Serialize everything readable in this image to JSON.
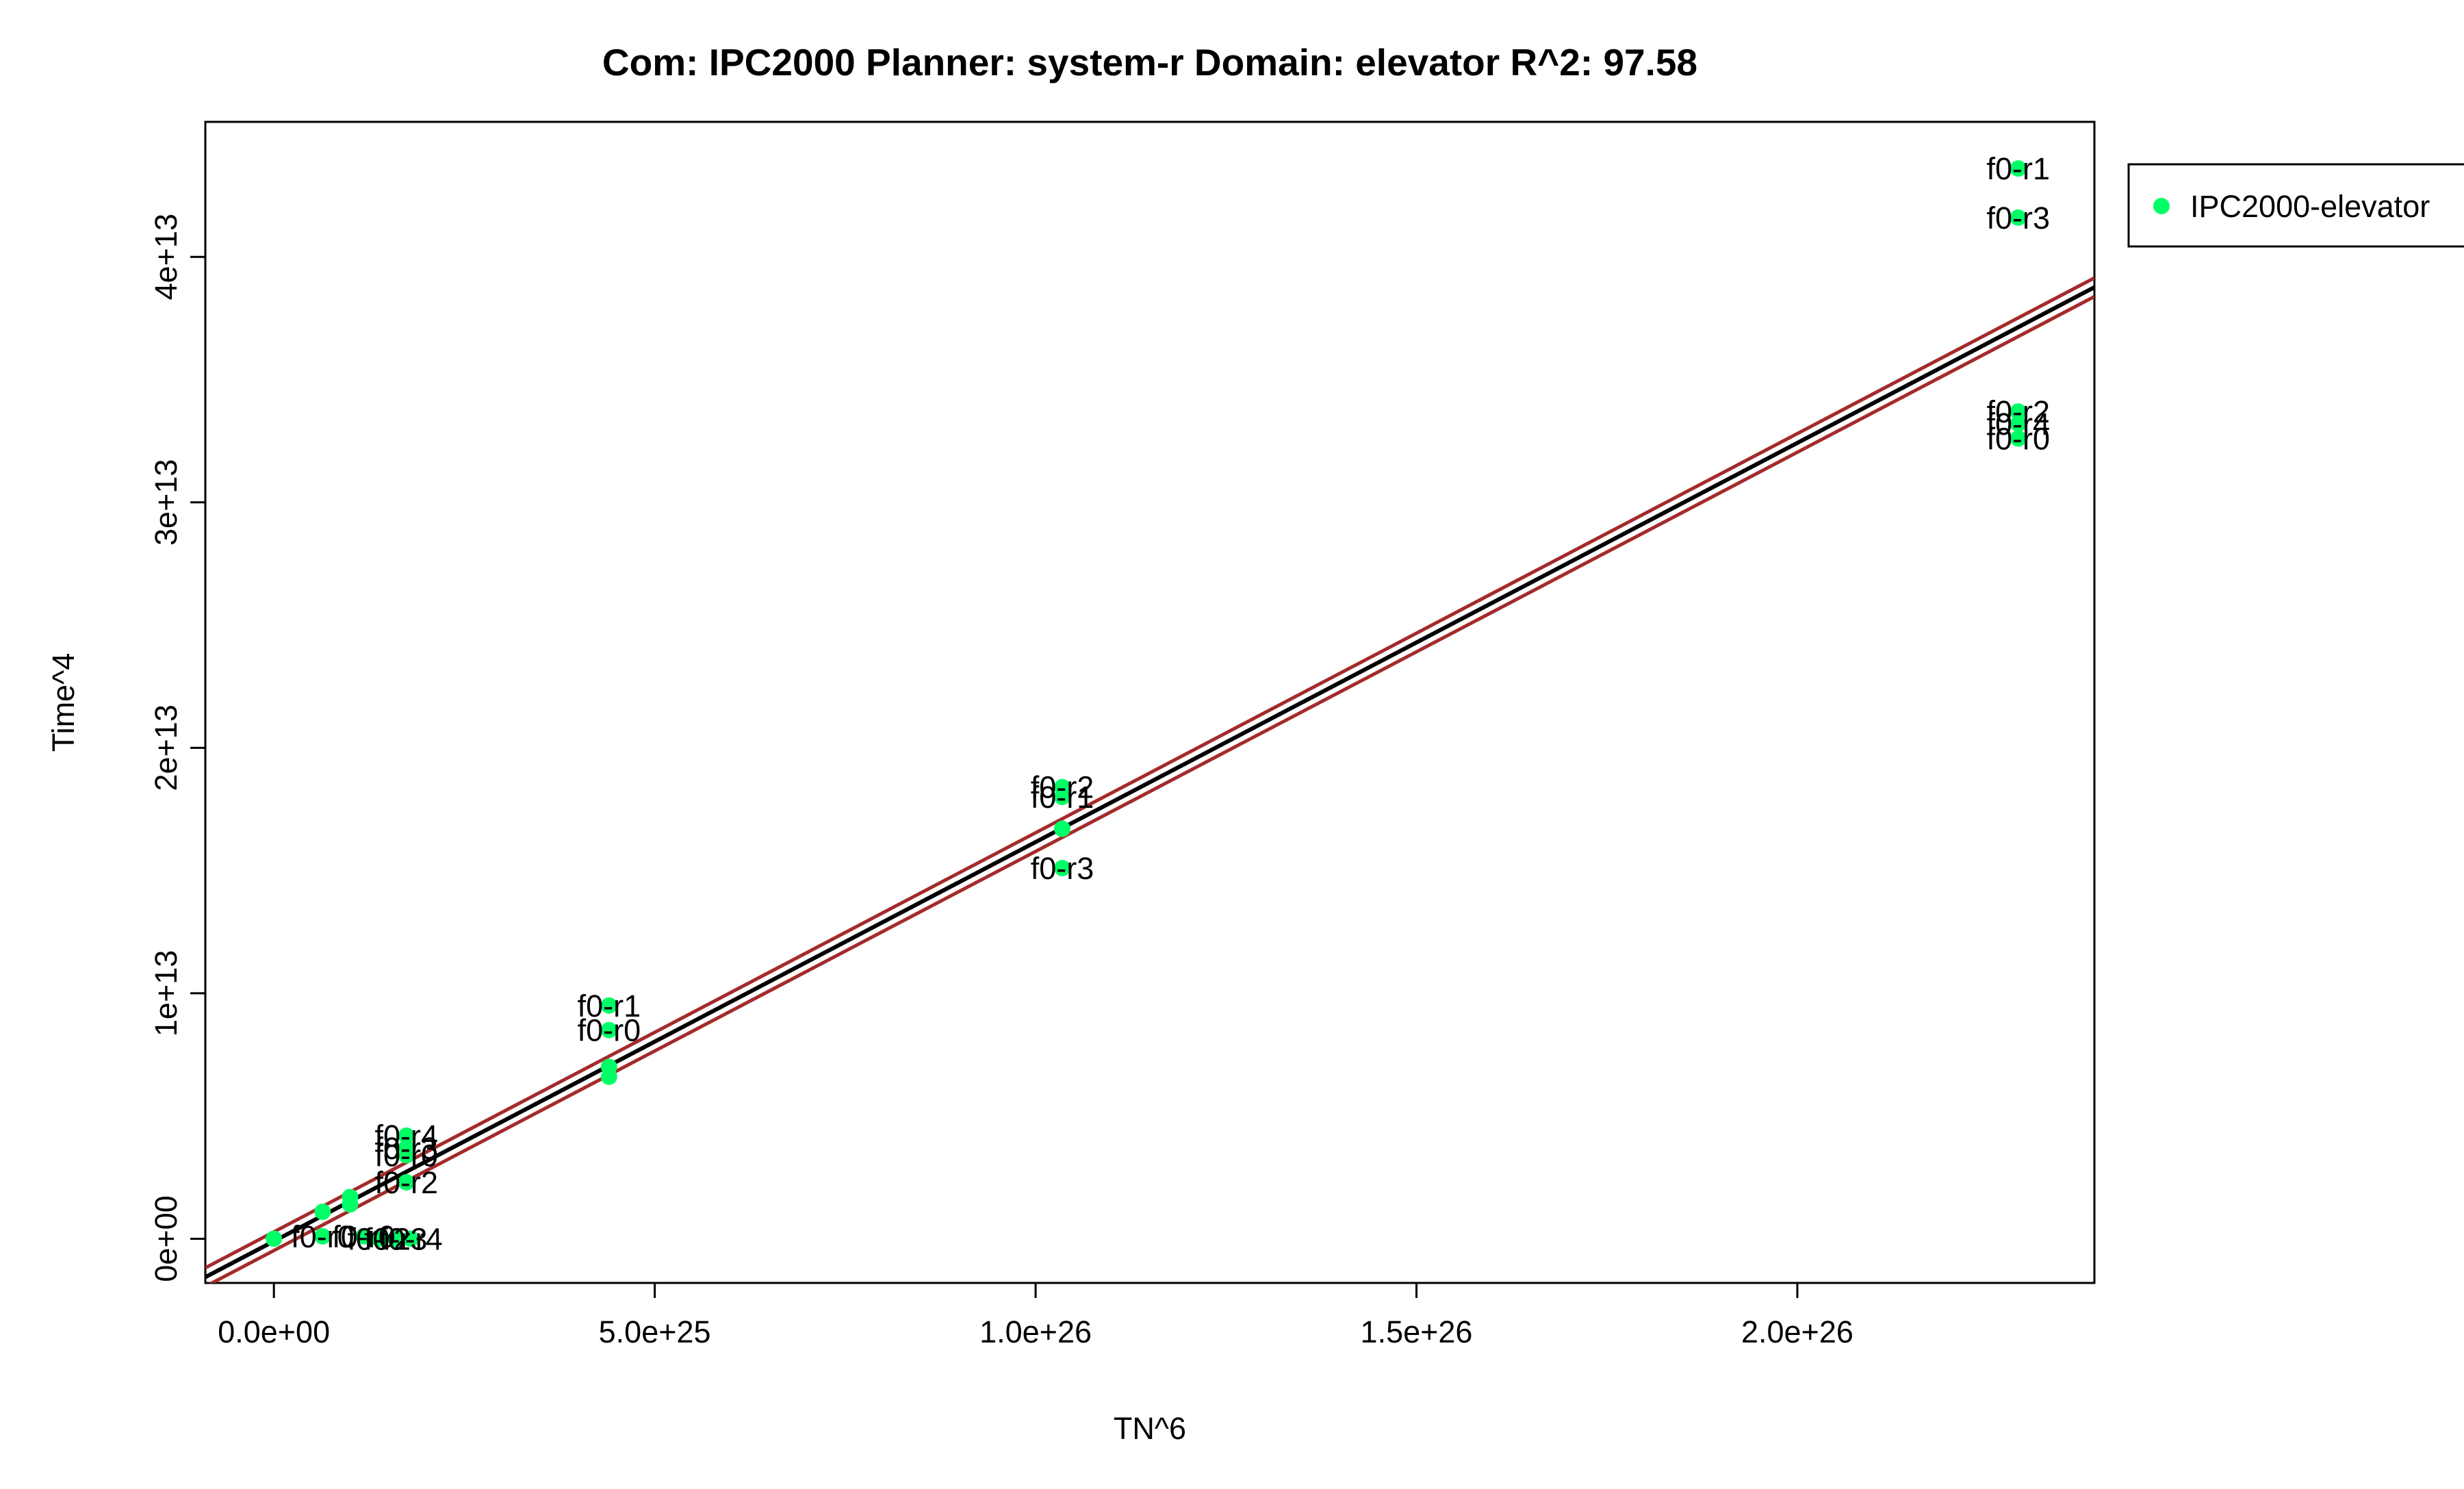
{
  "chart_data": {
    "type": "scatter",
    "title": "Com: IPC2000 Planner: system-r Domain: elevator R^2: 97.58",
    "xlabel": "TN^6",
    "ylabel": "Time^4",
    "xlim": [
      -9e+24,
      2.39e+26
    ],
    "ylim": [
      -1800000000000.0,
      45500000000000.0
    ],
    "x_ticks": [
      0,
      5e+25,
      1e+26,
      1.5e+26,
      2e+26
    ],
    "x_tick_labels": [
      "0.0e+00",
      "5.0e+25",
      "1.0e+26",
      "1.5e+26",
      "2.0e+26"
    ],
    "y_ticks": [
      0,
      10000000000000.0,
      20000000000000.0,
      30000000000000.0,
      40000000000000.0
    ],
    "y_tick_labels": [
      "0e+00",
      "1e+13",
      "2e+13",
      "3e+13",
      "4e+13"
    ],
    "grid": false,
    "legend": {
      "position": "outside-right",
      "entries": [
        "IPC2000-elevator"
      ]
    },
    "colors": {
      "points": "#00ff66",
      "fit_line": "#000000",
      "band_lines": "#a52a2a"
    },
    "series": [
      {
        "name": "IPC2000-elevator",
        "points": [
          {
            "x": 0,
            "y": 0,
            "label": ""
          },
          {
            "x": 6.4e+24,
            "y": 1100000000000.0,
            "label": ""
          },
          {
            "x": 6.4e+24,
            "y": 100000000000.0,
            "label": "f0-r0"
          },
          {
            "x": 1e+25,
            "y": 1700000000000.0,
            "label": ""
          },
          {
            "x": 1e+25,
            "y": 1400000000000.0,
            "label": ""
          },
          {
            "x": 1.18e+25,
            "y": 100000000000.0,
            "label": "f0-r0"
          },
          {
            "x": 1.38e+25,
            "y": 0,
            "label": "f0-r2"
          },
          {
            "x": 1.6e+25,
            "y": 0,
            "label": "f0-r3"
          },
          {
            "x": 1.8e+25,
            "y": 0,
            "label": "f0-r4"
          },
          {
            "x": 1.74e+25,
            "y": 4200000000000.0,
            "label": "f0-r4"
          },
          {
            "x": 1.74e+25,
            "y": 3700000000000.0,
            "label": "f0-r3"
          },
          {
            "x": 1.74e+25,
            "y": 3400000000000.0,
            "label": "f0-r0"
          },
          {
            "x": 1.74e+25,
            "y": 2300000000000.0,
            "label": "f0-r2"
          },
          {
            "x": 4.4e+25,
            "y": 9500000000000.0,
            "label": "f0-r1"
          },
          {
            "x": 4.4e+25,
            "y": 8500000000000.0,
            "label": "f0-r0"
          },
          {
            "x": 4.4e+25,
            "y": 7000000000000.0,
            "label": ""
          },
          {
            "x": 4.4e+25,
            "y": 6600000000000.0,
            "label": ""
          },
          {
            "x": 1.035e+26,
            "y": 18400000000000.0,
            "label": "f0-r2"
          },
          {
            "x": 1.035e+26,
            "y": 18000000000000.0,
            "label": "f0-r1"
          },
          {
            "x": 1.035e+26,
            "y": 16700000000000.0,
            "label": ""
          },
          {
            "x": 1.035e+26,
            "y": 15100000000000.0,
            "label": "f0-r3"
          },
          {
            "x": 2.29e+26,
            "y": 43600000000000.0,
            "label": "f0-r1"
          },
          {
            "x": 2.29e+26,
            "y": 41600000000000.0,
            "label": "f0-r3"
          },
          {
            "x": 2.29e+26,
            "y": 33700000000000.0,
            "label": "f0-r2"
          },
          {
            "x": 2.29e+26,
            "y": 33200000000000.0,
            "label": "f0-r4"
          },
          {
            "x": 2.29e+26,
            "y": 32600000000000.0,
            "label": "f0-r0"
          }
        ]
      }
    ],
    "regression": {
      "slope": 1.626e-13,
      "intercept": -100000000000.0,
      "band_offset": 380000000000.0
    }
  }
}
